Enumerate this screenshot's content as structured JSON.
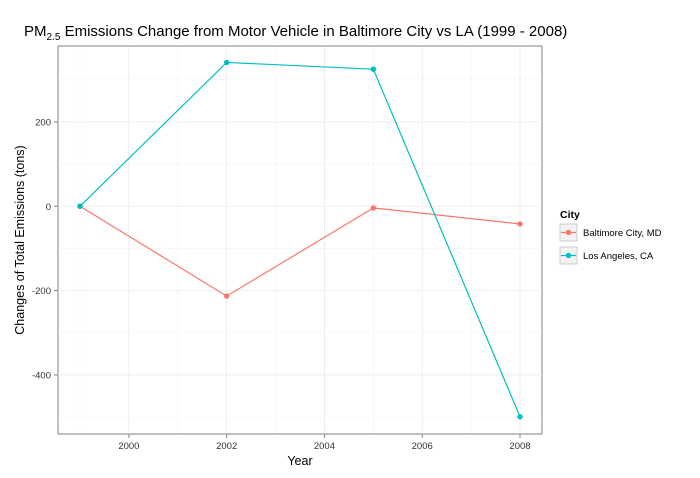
{
  "chart_data": {
    "type": "line",
    "title_main": "PM",
    "title_sub": "2.5",
    "title_rest": " Emissions Change from Motor Vehicle in Baltimore City vs LA (1999 - 2008)",
    "xlabel": "Year",
    "ylabel": "Changes of Total Emissions (tons)",
    "x": [
      1999,
      2002,
      2005,
      2008
    ],
    "xlim": [
      1998.55,
      2008.45
    ],
    "ylim": [
      -540,
      380
    ],
    "x_ticks": [
      2000,
      2002,
      2004,
      2006,
      2008
    ],
    "y_ticks": [
      -400,
      -200,
      0,
      200
    ],
    "grid": true,
    "legend_position": "right",
    "legend_title": "City",
    "series": [
      {
        "name": "Baltimore City, MD",
        "color": "#F8766D",
        "values": [
          0,
          -213,
          -4,
          -42
        ]
      },
      {
        "name": "Los Angeles, CA",
        "color": "#00BFC4",
        "values": [
          0,
          341,
          325,
          -499
        ]
      }
    ]
  }
}
